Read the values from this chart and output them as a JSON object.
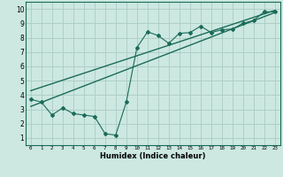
{
  "xlabel": "Humidex (Indice chaleur)",
  "bg_color": "#cce8e0",
  "grid_color": "#aaccC4",
  "line_color": "#1a6b5a",
  "xlim": [
    -0.5,
    23.5
  ],
  "ylim": [
    0.5,
    10.5
  ],
  "xticks": [
    0,
    1,
    2,
    3,
    4,
    5,
    6,
    7,
    8,
    9,
    10,
    11,
    12,
    13,
    14,
    15,
    16,
    17,
    18,
    19,
    20,
    21,
    22,
    23
  ],
  "yticks": [
    1,
    2,
    3,
    4,
    5,
    6,
    7,
    8,
    9,
    10
  ],
  "data_x": [
    0,
    1,
    2,
    3,
    4,
    5,
    6,
    7,
    8,
    9,
    10,
    11,
    12,
    13,
    14,
    15,
    16,
    17,
    18,
    19,
    20,
    21,
    22,
    23
  ],
  "data_y": [
    3.7,
    3.5,
    2.6,
    3.1,
    2.7,
    2.6,
    2.5,
    1.3,
    1.2,
    3.5,
    7.3,
    8.4,
    8.15,
    7.6,
    8.3,
    8.35,
    8.8,
    8.35,
    8.55,
    8.6,
    9.0,
    9.2,
    9.8,
    9.8
  ],
  "trend1_x": [
    0,
    23
  ],
  "trend1_y": [
    3.2,
    9.75
  ],
  "trend2_x": [
    0,
    23
  ],
  "trend2_y": [
    4.3,
    9.9
  ]
}
